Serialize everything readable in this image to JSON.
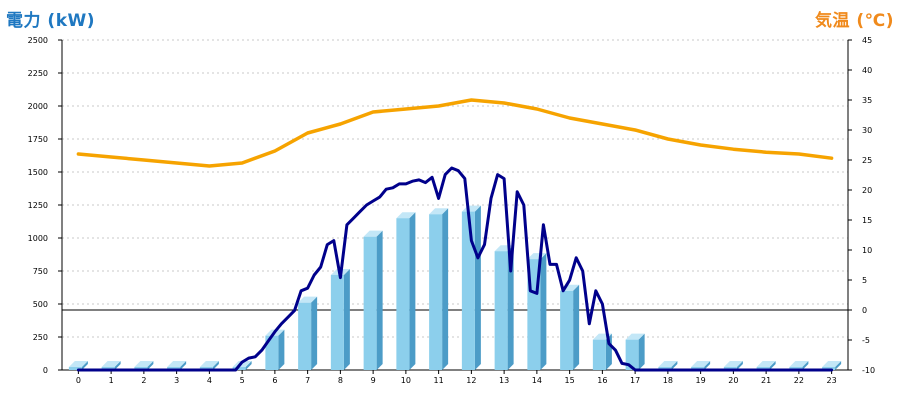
{
  "chart_data": {
    "type": "bar-line-combo",
    "left_axis_title": "電力 (kW)",
    "right_axis_title": "気温 (℃)",
    "colors": {
      "left_title": "#1f78c1",
      "right_title": "#f08a1c",
      "bars": "#8ccfec",
      "bars_side": "#4c9cc7",
      "bars_top": "#c3e7f7",
      "power_line": "#00008b",
      "temp_line": "#f6a300",
      "grid": "#c8c8c8",
      "axis": "#000000"
    },
    "left_ylim": [
      0,
      2500
    ],
    "left_ticks": [
      0,
      250,
      500,
      750,
      1000,
      1250,
      1500,
      1750,
      2000,
      2250,
      2500
    ],
    "right_ylim": [
      -10,
      45
    ],
    "right_ticks": [
      -10,
      -5,
      0,
      5,
      10,
      15,
      20,
      25,
      30,
      35,
      40,
      45
    ],
    "x_ticks": [
      "0",
      "1",
      "2",
      "3",
      "4",
      "5",
      "6",
      "7",
      "8",
      "9",
      "10",
      "11",
      "12",
      "13",
      "14",
      "15",
      "16",
      "17",
      "18",
      "19",
      "20",
      "21",
      "22",
      "23"
    ],
    "grid": true,
    "bars_hourly_kw": [
      0,
      0,
      0,
      0,
      0,
      0,
      260,
      510,
      720,
      1010,
      1150,
      1180,
      1200,
      900,
      840,
      600,
      230,
      230,
      0,
      0,
      0,
      0,
      0,
      0
    ],
    "power_kw": {
      "x": [
        0,
        1,
        2,
        3,
        4,
        4.8,
        5.0,
        5.2,
        5.4,
        5.6,
        5.8,
        6.0,
        6.2,
        6.4,
        6.6,
        6.8,
        7.0,
        7.2,
        7.4,
        7.6,
        7.8,
        8.0,
        8.2,
        8.4,
        8.6,
        8.8,
        9.0,
        9.2,
        9.4,
        9.6,
        9.8,
        10.0,
        10.2,
        10.4,
        10.6,
        10.8,
        11.0,
        11.2,
        11.4,
        11.6,
        11.8,
        12.0,
        12.2,
        12.4,
        12.6,
        12.8,
        13.0,
        13.2,
        13.4,
        13.6,
        13.8,
        14.0,
        14.2,
        14.4,
        14.6,
        14.8,
        15.0,
        15.2,
        15.4,
        15.6,
        15.8,
        16.0,
        16.2,
        16.4,
        16.6,
        16.8,
        17.0,
        17.2,
        17.4,
        17.6,
        18.0,
        19.0,
        20.0,
        21.0,
        22.0,
        23.0
      ],
      "y": [
        0,
        0,
        0,
        0,
        0,
        0,
        60,
        90,
        100,
        150,
        220,
        290,
        350,
        400,
        450,
        600,
        620,
        720,
        780,
        950,
        980,
        700,
        1100,
        1150,
        1200,
        1250,
        1280,
        1310,
        1370,
        1380,
        1410,
        1410,
        1430,
        1440,
        1420,
        1460,
        1300,
        1480,
        1530,
        1510,
        1450,
        980,
        850,
        950,
        1300,
        1480,
        1450,
        750,
        1350,
        1250,
        600,
        580,
        1100,
        800,
        800,
        600,
        680,
        850,
        750,
        350,
        600,
        500,
        200,
        150,
        50,
        40,
        0,
        0,
        0,
        0,
        0,
        0,
        0,
        0,
        0,
        0
      ],
      "unit": "kW"
    },
    "temperature_c": {
      "x": [
        0,
        1,
        2,
        3,
        4,
        5,
        6,
        7,
        8,
        9,
        10,
        11,
        12,
        13,
        14,
        15,
        16,
        17,
        18,
        19,
        20,
        21,
        22,
        23
      ],
      "y": [
        26,
        25.5,
        25,
        24.5,
        24,
        24.5,
        26.5,
        29.5,
        31,
        33,
        33.5,
        34,
        35,
        34.5,
        33.5,
        32,
        31,
        30,
        28.5,
        27.5,
        26.8,
        26.3,
        26,
        25.3
      ],
      "unit": "℃"
    },
    "reference_line_value": 0
  }
}
